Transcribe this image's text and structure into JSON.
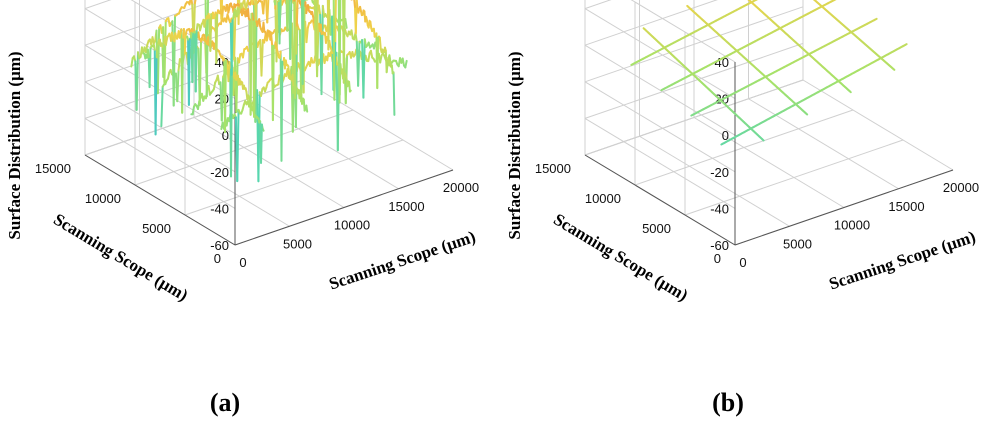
{
  "chart_data": [
    {
      "type": "line",
      "panel_label": "(a)",
      "xlabel": "Scanning Scope (μm)",
      "ylabel": "Scanning Scope (μm)",
      "zlabel": "Surface Distribution (μm)",
      "xlim": [
        0,
        20000
      ],
      "ylim": [
        0,
        15000
      ],
      "zlim": [
        -60,
        40
      ],
      "xticks": [
        "0",
        "5000",
        "10000",
        "15000",
        "20000"
      ],
      "yticks": [
        "0",
        "5000",
        "10000",
        "15000"
      ],
      "zticks": [
        "40",
        "20",
        "0",
        "-20",
        "-40",
        "-60"
      ],
      "grid": true,
      "colormap": [
        "#3b4fd8",
        "#3aa7e8",
        "#56d6b0",
        "#a7e26a",
        "#f0d24a",
        "#f2a23c"
      ],
      "series": [
        {
          "direction": "x",
          "y": 3000,
          "z_profile": "arched",
          "z_peak": 10,
          "z_end": -8,
          "spikes": "deep",
          "min_z": -52
        },
        {
          "direction": "x",
          "y": 6000,
          "z_profile": "arched",
          "z_peak": 18,
          "z_end": -10,
          "spikes": "deep",
          "min_z": -48
        },
        {
          "direction": "x",
          "y": 9000,
          "z_profile": "arched",
          "z_peak": 22,
          "z_end": -6,
          "spikes": "deep",
          "min_z": -45
        },
        {
          "direction": "x",
          "y": 12000,
          "z_profile": "arched",
          "z_peak": 24,
          "z_end": -4,
          "spikes": "deep",
          "min_z": -40
        },
        {
          "direction": "y",
          "x": 4000,
          "z_profile": "arched",
          "z_peak": 20,
          "z_end": -10,
          "spikes": "deep",
          "min_z": -50
        },
        {
          "direction": "y",
          "x": 8000,
          "z_profile": "arched",
          "z_peak": 26,
          "z_end": -8,
          "spikes": "deep",
          "min_z": -48
        },
        {
          "direction": "y",
          "x": 12000,
          "z_profile": "arched",
          "z_peak": 28,
          "z_end": -5,
          "spikes": "deep",
          "min_z": -45
        },
        {
          "direction": "y",
          "x": 16000,
          "z_profile": "arched",
          "z_peak": 26,
          "z_end": -3,
          "spikes": "deep",
          "min_z": -40
        }
      ]
    },
    {
      "type": "line",
      "panel_label": "(b)",
      "xlabel": "Scanning Scope (μm)",
      "ylabel": "Scanning Scope (μm)",
      "zlabel": "Surface Distribution (μm)",
      "xlim": [
        0,
        20000
      ],
      "ylim": [
        0,
        15000
      ],
      "zlim": [
        -60,
        40
      ],
      "xticks": [
        "0",
        "5000",
        "10000",
        "15000",
        "20000"
      ],
      "yticks": [
        "0",
        "5000",
        "10000",
        "15000"
      ],
      "zticks": [
        "40",
        "20",
        "0",
        "-20",
        "-40",
        "-60"
      ],
      "grid": true,
      "colormap": [
        "#3b4fd8",
        "#3aa7e8",
        "#56d6b0",
        "#a7e26a",
        "#f0d24a",
        "#f2a23c"
      ],
      "series": [
        {
          "direction": "x",
          "y": 3000,
          "z_start": -18,
          "z_end": 2
        },
        {
          "direction": "x",
          "y": 6000,
          "z_start": -12,
          "z_end": 6
        },
        {
          "direction": "x",
          "y": 9000,
          "z_start": -8,
          "z_end": 10
        },
        {
          "direction": "x",
          "y": 12000,
          "z_start": -4,
          "z_end": 14
        },
        {
          "direction": "y",
          "x": 4000,
          "z_start": -16,
          "z_end": 6
        },
        {
          "direction": "y",
          "x": 8000,
          "z_start": -10,
          "z_end": 10
        },
        {
          "direction": "y",
          "x": 12000,
          "z_start": -6,
          "z_end": 14
        },
        {
          "direction": "y",
          "x": 16000,
          "z_start": -2,
          "z_end": 16
        }
      ]
    }
  ]
}
